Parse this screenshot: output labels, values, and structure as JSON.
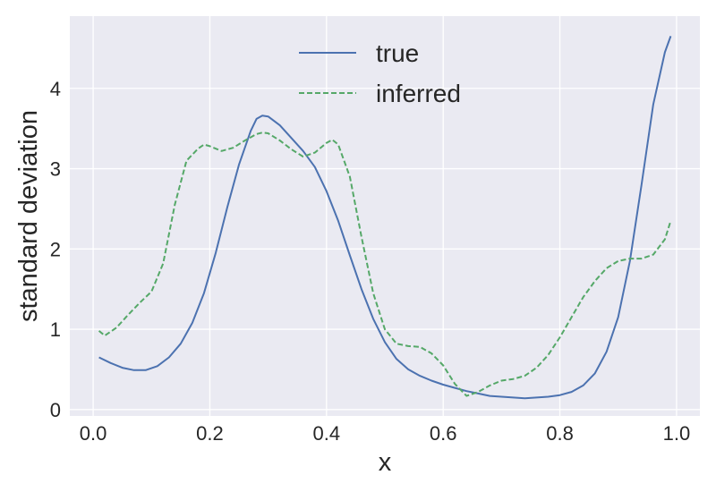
{
  "chart_data": {
    "type": "line",
    "title": "",
    "xlabel": "x",
    "ylabel": "standard deviation",
    "xlim": [
      -0.04,
      1.04
    ],
    "ylim": [
      -0.08,
      4.9
    ],
    "x_ticks": [
      0.0,
      0.2,
      0.4,
      0.6,
      0.8,
      1.0
    ],
    "x_tick_labels": [
      "0.0",
      "0.2",
      "0.4",
      "0.6",
      "0.8",
      "1.0"
    ],
    "y_ticks": [
      0,
      1,
      2,
      3,
      4
    ],
    "y_tick_labels": [
      "0",
      "1",
      "2",
      "3",
      "4"
    ],
    "grid": true,
    "legend_position": "top-center",
    "background": "#EAEAF2",
    "series": [
      {
        "name": "true",
        "color": "#4C72B0",
        "style": "solid",
        "x": [
          0.01,
          0.03,
          0.05,
          0.07,
          0.09,
          0.11,
          0.13,
          0.15,
          0.17,
          0.19,
          0.21,
          0.23,
          0.25,
          0.27,
          0.28,
          0.29,
          0.3,
          0.32,
          0.34,
          0.36,
          0.38,
          0.4,
          0.42,
          0.44,
          0.46,
          0.48,
          0.5,
          0.52,
          0.54,
          0.56,
          0.58,
          0.6,
          0.62,
          0.64,
          0.66,
          0.68,
          0.7,
          0.72,
          0.74,
          0.76,
          0.78,
          0.8,
          0.82,
          0.84,
          0.86,
          0.88,
          0.9,
          0.92,
          0.94,
          0.96,
          0.98,
          0.99
        ],
        "y": [
          0.65,
          0.58,
          0.52,
          0.49,
          0.49,
          0.54,
          0.65,
          0.82,
          1.08,
          1.45,
          1.95,
          2.52,
          3.05,
          3.47,
          3.62,
          3.66,
          3.65,
          3.54,
          3.38,
          3.22,
          3.02,
          2.72,
          2.35,
          1.92,
          1.5,
          1.13,
          0.84,
          0.63,
          0.5,
          0.42,
          0.36,
          0.31,
          0.27,
          0.23,
          0.2,
          0.17,
          0.16,
          0.15,
          0.14,
          0.15,
          0.16,
          0.18,
          0.22,
          0.3,
          0.45,
          0.72,
          1.15,
          1.85,
          2.8,
          3.8,
          4.45,
          4.65
        ]
      },
      {
        "name": "inferred",
        "color": "#55A868",
        "style": "dashed",
        "x": [
          0.01,
          0.02,
          0.04,
          0.06,
          0.08,
          0.1,
          0.12,
          0.14,
          0.16,
          0.18,
          0.19,
          0.2,
          0.22,
          0.24,
          0.26,
          0.28,
          0.29,
          0.3,
          0.32,
          0.34,
          0.36,
          0.38,
          0.4,
          0.41,
          0.42,
          0.44,
          0.46,
          0.48,
          0.5,
          0.52,
          0.54,
          0.56,
          0.58,
          0.6,
          0.62,
          0.64,
          0.66,
          0.68,
          0.7,
          0.72,
          0.74,
          0.76,
          0.78,
          0.8,
          0.82,
          0.84,
          0.86,
          0.88,
          0.9,
          0.92,
          0.94,
          0.96,
          0.98,
          0.99
        ],
        "y": [
          0.98,
          0.92,
          1.02,
          1.18,
          1.33,
          1.47,
          1.82,
          2.55,
          3.1,
          3.25,
          3.3,
          3.28,
          3.22,
          3.26,
          3.35,
          3.43,
          3.45,
          3.44,
          3.35,
          3.24,
          3.15,
          3.2,
          3.32,
          3.36,
          3.3,
          2.9,
          2.15,
          1.45,
          1.0,
          0.82,
          0.79,
          0.78,
          0.7,
          0.55,
          0.32,
          0.17,
          0.22,
          0.3,
          0.36,
          0.38,
          0.42,
          0.52,
          0.68,
          0.9,
          1.15,
          1.4,
          1.6,
          1.76,
          1.85,
          1.88,
          1.88,
          1.93,
          2.12,
          2.35
        ]
      }
    ]
  }
}
